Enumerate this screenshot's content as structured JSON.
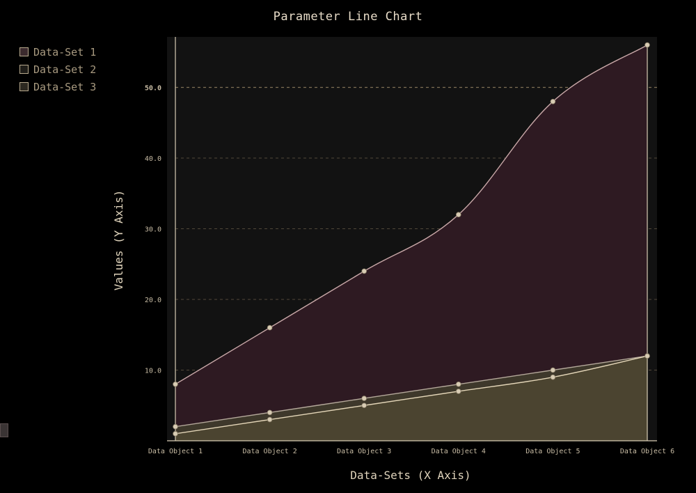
{
  "chart_data": {
    "type": "area",
    "title": "Parameter Line Chart",
    "xlabel": "Data-Sets (X Axis)",
    "ylabel": "Values (Y Axis)",
    "categories": [
      "Data Object 1",
      "Data Object 2",
      "Data Object 3",
      "Data Object 4",
      "Data Object 5",
      "Data Object 6"
    ],
    "ylim": [
      0,
      57
    ],
    "yticks": [
      "10.0",
      "20.0",
      "30.0",
      "40.0",
      "50.0"
    ],
    "grid": true,
    "legend_position": "top-left",
    "series": [
      {
        "name": "Data-Set 1",
        "values": [
          8,
          16,
          24,
          32,
          48,
          56
        ],
        "color": "#c9a8a8",
        "fill": "#2e1a22"
      },
      {
        "name": "Data-Set 2",
        "values": [
          2,
          4,
          6,
          8,
          10,
          12
        ],
        "color": "#b4a89a",
        "fill": "#3f3a2c"
      },
      {
        "name": "Data-Set 3",
        "values": [
          1,
          3,
          5,
          7,
          9,
          12
        ],
        "color": "#e4d6b8",
        "fill": "#4c4430"
      }
    ]
  },
  "colors": {
    "background": "#000000",
    "plot_background": "#121212",
    "grid": "#8a7a5e",
    "axis": "#d8ccb4"
  }
}
